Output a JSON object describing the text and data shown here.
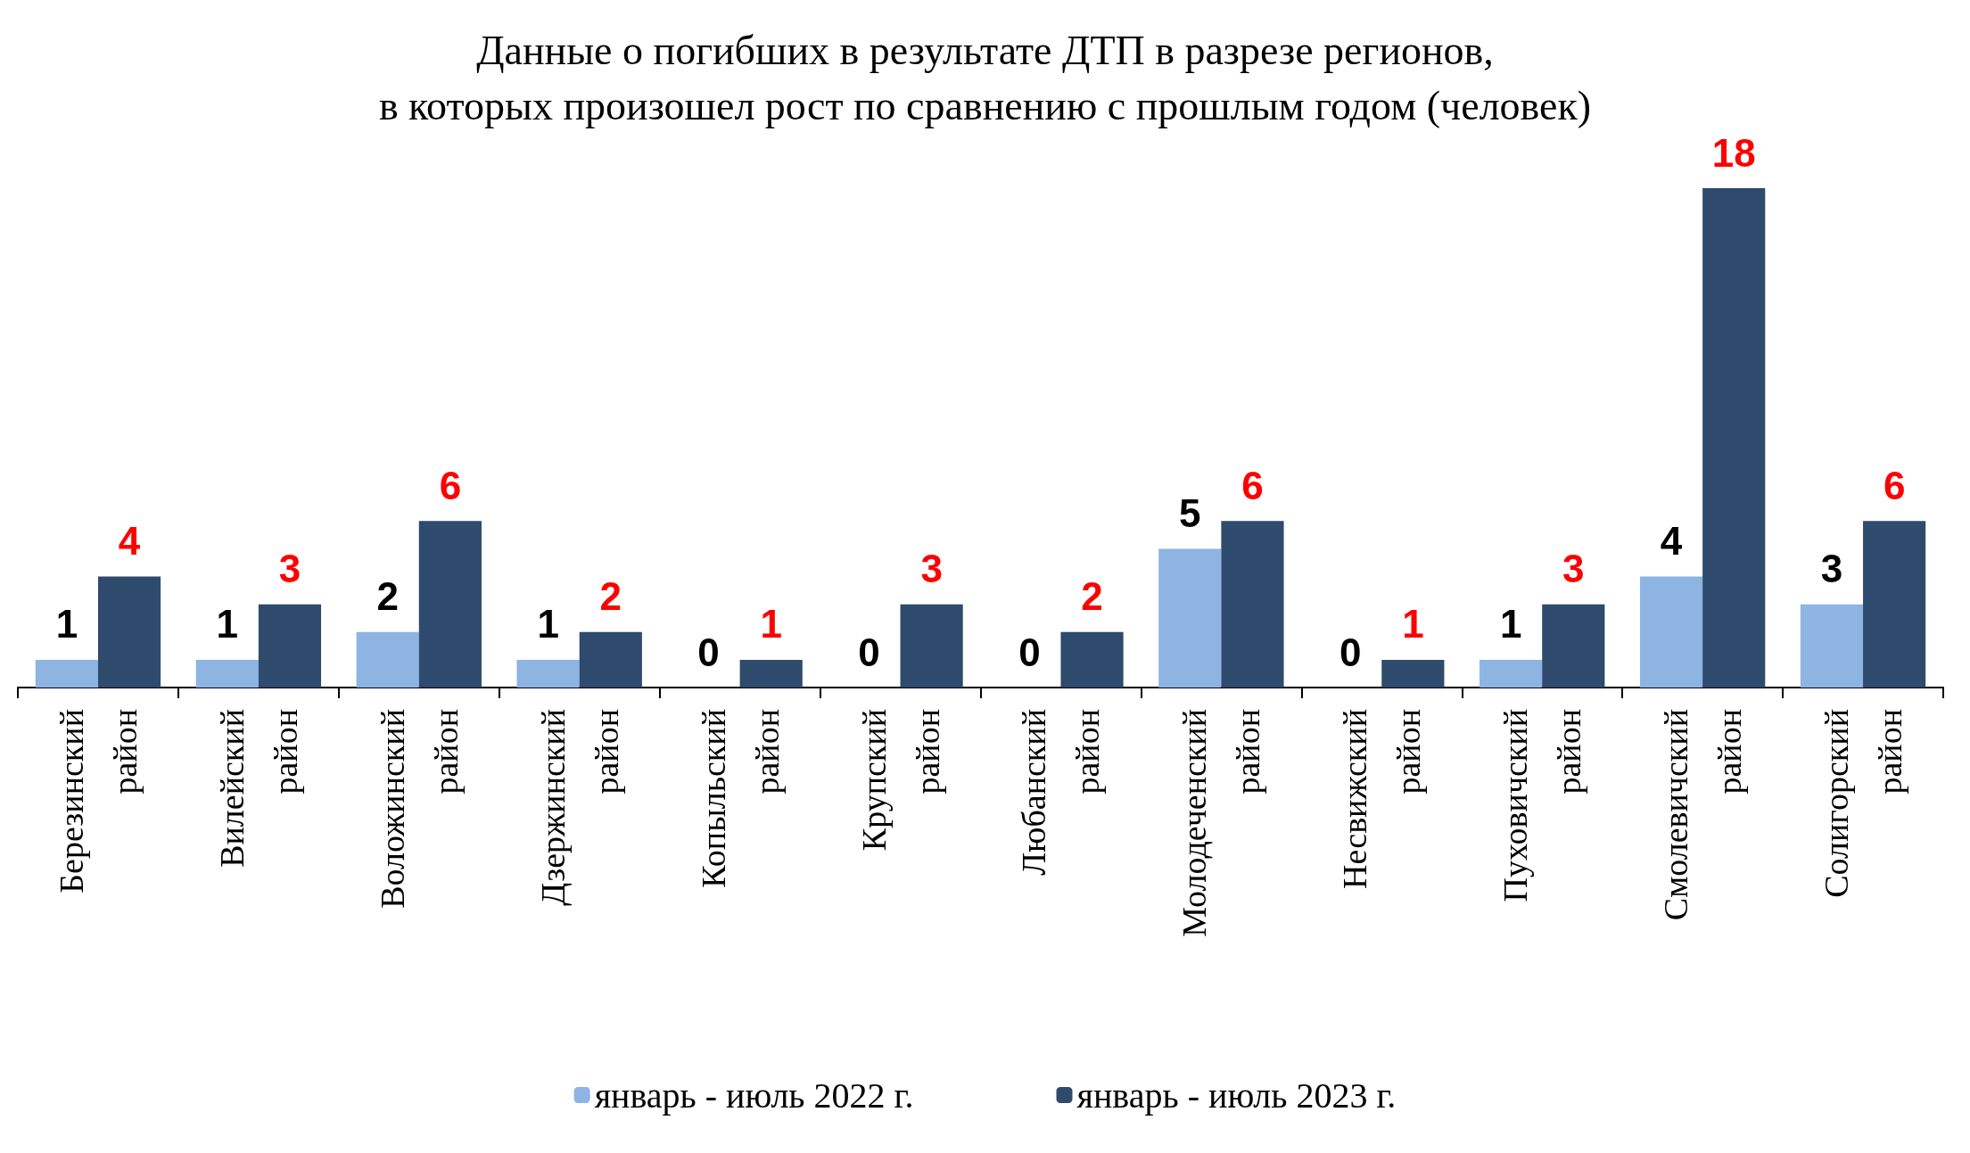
{
  "chart_data": {
    "type": "bar",
    "title": "Данные о погибших в результате ДТП в разрезе регионов,\nв которых произошел рост по сравнению с прошлым годом (человек)",
    "categories": [
      "Березинский район",
      "Вилейский район",
      "Воложинский район",
      "Дзержинский район",
      "Копыльский район",
      "Крупский район",
      "Любанский район",
      "Молодеченский район",
      "Несвижский район",
      "Пуховичский район",
      "Смолевичский район",
      "Солигорский район"
    ],
    "series": [
      {
        "name": "январь - июль 2022 г.",
        "color": "#8db4e2",
        "values": [
          1,
          1,
          2,
          1,
          0,
          0,
          0,
          5,
          0,
          1,
          4,
          3
        ]
      },
      {
        "name": "январь - июль 2023 г.",
        "color": "#2e4a6c",
        "values": [
          4,
          3,
          6,
          2,
          1,
          3,
          2,
          6,
          1,
          3,
          18,
          6
        ]
      }
    ],
    "data_labels": true,
    "legend": "bottom",
    "grid": false
  }
}
